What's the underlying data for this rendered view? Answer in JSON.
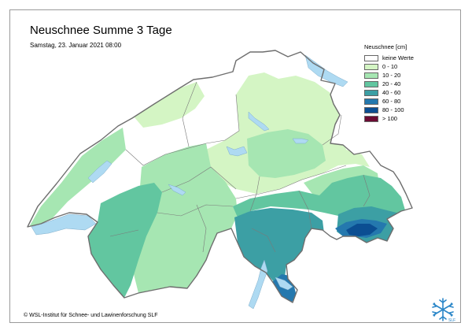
{
  "header": {
    "title": "Neuschnee Summe 3 Tage",
    "subtitle": "Samstag, 23. Januar 2021 08:00"
  },
  "legend": {
    "title": "Neuschnee [cm]",
    "items": [
      {
        "label": "keine Werte",
        "color": "#ffffff"
      },
      {
        "label": "0 - 10",
        "color": "#d4f5c4"
      },
      {
        "label": "10 - 20",
        "color": "#a6e6b2"
      },
      {
        "label": "20 - 40",
        "color": "#62c6a0"
      },
      {
        "label": "40 - 60",
        "color": "#3c9fa4"
      },
      {
        "label": "60 - 80",
        "color": "#2478ae"
      },
      {
        "label": "80 - 100",
        "color": "#0b4e92"
      },
      {
        "label": "> 100",
        "color": "#6b0b33"
      }
    ]
  },
  "colors": {
    "lake": "#aedaf2",
    "border": "#6e6e6e"
  },
  "footer": {
    "credit": "© WSL-Institut für Schnee- und Lawinenforschung SLF"
  },
  "logo": {
    "icon": "snowflake-icon",
    "label": "SLF"
  }
}
